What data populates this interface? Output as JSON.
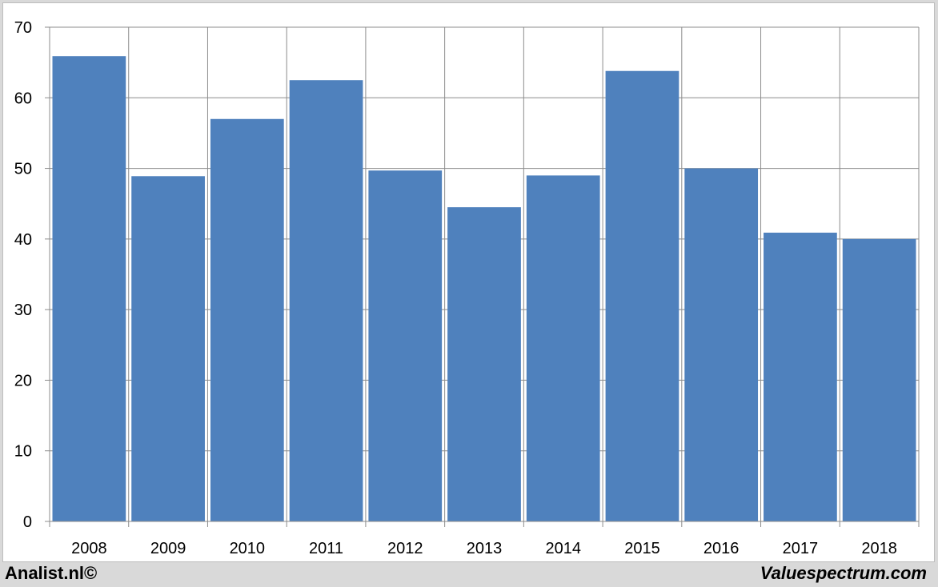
{
  "chart_data": {
    "type": "bar",
    "categories": [
      "2008",
      "2009",
      "2010",
      "2011",
      "2012",
      "2013",
      "2014",
      "2015",
      "2016",
      "2017",
      "2018"
    ],
    "values": [
      65.9,
      48.9,
      57.0,
      62.5,
      49.7,
      44.5,
      49.0,
      63.8,
      50.0,
      40.9,
      40.0
    ],
    "ylim": [
      0,
      70
    ],
    "yticks": [
      0,
      10,
      20,
      30,
      40,
      50,
      60,
      70
    ],
    "grid": true,
    "legend": "none",
    "bar_color": "#4f81bd"
  },
  "footer": {
    "left": "Analist.nl©",
    "right": "Valuespectrum.com"
  }
}
